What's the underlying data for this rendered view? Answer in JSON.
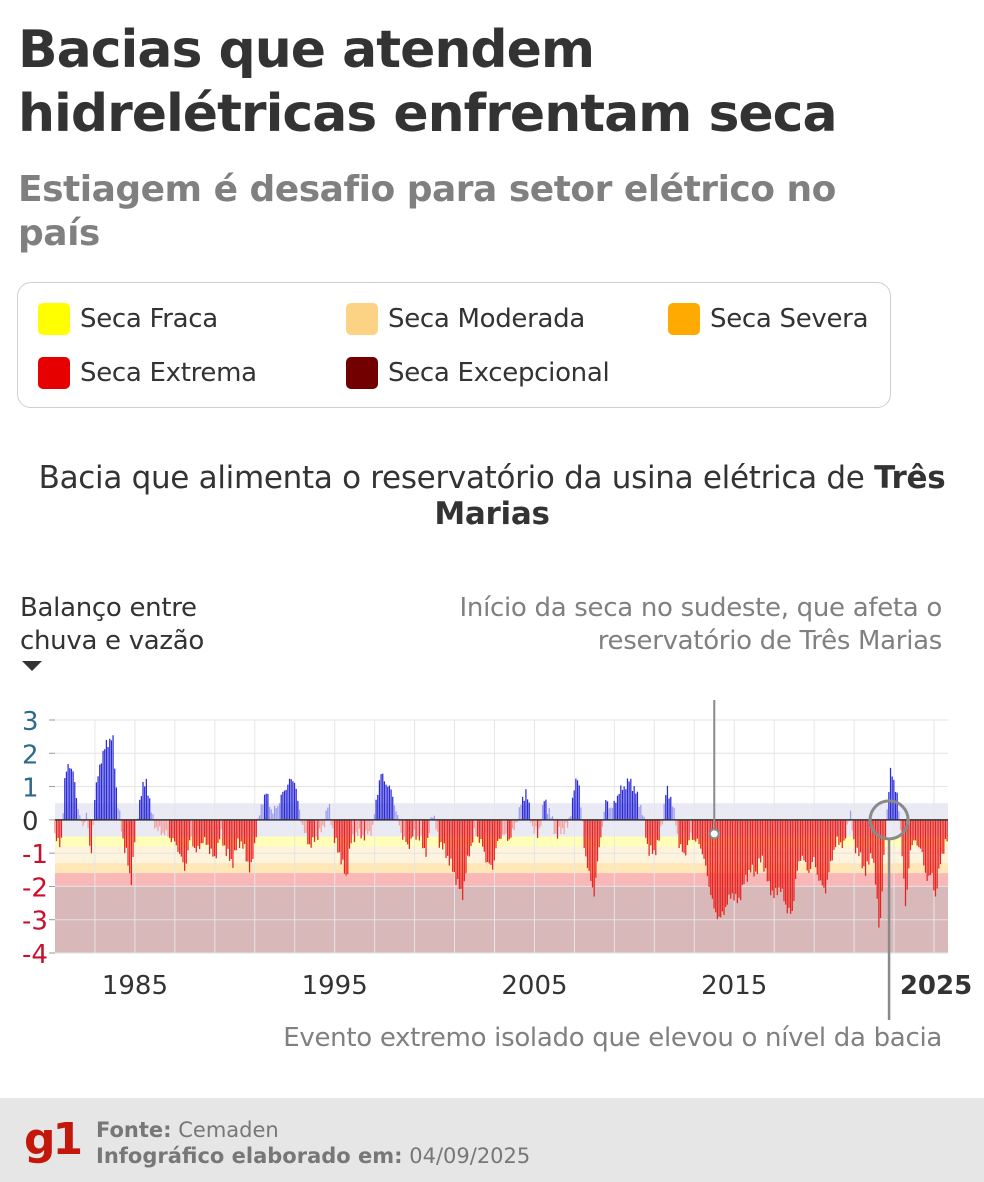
{
  "header": {
    "title": "Bacias que atendem hidrelétricas enfrentam seca",
    "subtitle": "Estiagem é desafio para setor elétrico no país"
  },
  "legend": [
    {
      "label": "Seca Fraca",
      "color": "#ffff00"
    },
    {
      "label": "Seca Moderada",
      "color": "#fcd385"
    },
    {
      "label": "Seca Severa",
      "color": "#ffaa00"
    },
    {
      "label": "Seca Extrema",
      "color": "#e60000"
    },
    {
      "label": "Seca Excepcional",
      "color": "#730000"
    }
  ],
  "chart_header": {
    "title_prefix": "Bacia que alimenta o reservatório da usina elétrica de ",
    "title_bold": "Três Marias"
  },
  "chart_data": {
    "type": "bar",
    "ylabel": "Balanço entre chuva e vazão",
    "ylim": [
      -4,
      3
    ],
    "yticks": [
      "3",
      "2",
      "1",
      "0",
      "-1",
      "-2",
      "-3",
      "-4"
    ],
    "ytick_values": [
      3,
      2,
      1,
      0,
      -1,
      -2,
      -3,
      -4
    ],
    "xlim": [
      1981,
      2025.7
    ],
    "xticks": [
      "1985",
      "1995",
      "2005",
      "2015",
      "2025"
    ],
    "xtick_values": [
      1985,
      1995,
      2005,
      2015,
      2025
    ],
    "grid": true,
    "bands": [
      {
        "name": "Seca Fraca",
        "from": -0.5,
        "to": -0.8,
        "color": "#ffff00"
      },
      {
        "name": "Seca Moderada",
        "from": -0.8,
        "to": -1.3,
        "color": "#fcd385"
      },
      {
        "name": "Seca Severa",
        "from": -1.3,
        "to": -1.6,
        "color": "#ffaa00"
      },
      {
        "name": "Seca Extrema",
        "from": -1.6,
        "to": -2.0,
        "color": "#e60000"
      },
      {
        "name": "Seca Excepcional",
        "from": -2.0,
        "to": -4.0,
        "color": "#730000"
      }
    ],
    "neutral_band": [
      -0.5,
      0.5
    ],
    "colors": {
      "positive": "#2b2bd6",
      "neutral": "#9a9af0",
      "neutral_negative": "#f2a0a0",
      "negative": "#e8231f"
    },
    "series": [
      {
        "name": "",
        "keypoints": [
          [
            1981.0,
            -0.4
          ],
          [
            1981.3,
            -0.9
          ],
          [
            1981.5,
            1.2
          ],
          [
            1981.7,
            1.7
          ],
          [
            1981.9,
            1.5
          ],
          [
            1982.1,
            0.6
          ],
          [
            1982.4,
            -0.3
          ],
          [
            1982.6,
            0.3
          ],
          [
            1982.8,
            -1.3
          ],
          [
            1983.0,
            0.7
          ],
          [
            1983.3,
            1.8
          ],
          [
            1983.6,
            2.3
          ],
          [
            1983.9,
            2.5
          ],
          [
            1984.1,
            0.8
          ],
          [
            1984.4,
            -0.6
          ],
          [
            1984.6,
            -1.0
          ],
          [
            1984.8,
            -2.0
          ],
          [
            1985.0,
            -0.6
          ],
          [
            1985.3,
            0.8
          ],
          [
            1985.6,
            1.2
          ],
          [
            1985.8,
            0.3
          ],
          [
            1986.1,
            -0.3
          ],
          [
            1986.5,
            -0.4
          ],
          [
            1986.9,
            -0.6
          ],
          [
            1987.2,
            -0.9
          ],
          [
            1987.5,
            -1.5
          ],
          [
            1987.8,
            -0.5
          ],
          [
            1988.1,
            -1.0
          ],
          [
            1988.4,
            -0.6
          ],
          [
            1988.7,
            -0.8
          ],
          [
            1989.0,
            -1.2
          ],
          [
            1989.3,
            -0.4
          ],
          [
            1989.6,
            -1.0
          ],
          [
            1989.9,
            -1.3
          ],
          [
            1990.2,
            -0.6
          ],
          [
            1990.5,
            -0.9
          ],
          [
            1990.8,
            -1.6
          ],
          [
            1991.1,
            -0.3
          ],
          [
            1991.4,
            0.6
          ],
          [
            1991.6,
            0.8
          ],
          [
            1991.9,
            0.2
          ],
          [
            1992.2,
            0.5
          ],
          [
            1992.5,
            0.9
          ],
          [
            1992.8,
            1.2
          ],
          [
            1993.0,
            1.2
          ],
          [
            1993.2,
            0.4
          ],
          [
            1993.5,
            -0.4
          ],
          [
            1993.8,
            -0.8
          ],
          [
            1994.1,
            -0.5
          ],
          [
            1994.4,
            -0.3
          ],
          [
            1994.7,
            0.5
          ],
          [
            1995.0,
            -0.6
          ],
          [
            1995.3,
            -1.1
          ],
          [
            1995.6,
            -1.8
          ],
          [
            1995.8,
            -0.7
          ],
          [
            1996.1,
            -0.4
          ],
          [
            1996.5,
            -0.5
          ],
          [
            1996.9,
            -0.3
          ],
          [
            1997.1,
            0.6
          ],
          [
            1997.3,
            1.4
          ],
          [
            1997.6,
            1.1
          ],
          [
            1997.9,
            0.8
          ],
          [
            1998.1,
            0.2
          ],
          [
            1998.4,
            -0.5
          ],
          [
            1998.7,
            -0.8
          ],
          [
            1999.0,
            -0.4
          ],
          [
            1999.3,
            -0.6
          ],
          [
            1999.6,
            -1.0
          ],
          [
            1999.9,
            0.3
          ],
          [
            2000.2,
            -0.6
          ],
          [
            2000.5,
            -0.9
          ],
          [
            2000.8,
            -1.3
          ],
          [
            2001.1,
            -1.8
          ],
          [
            2001.4,
            -2.3
          ],
          [
            2001.7,
            -1.1
          ],
          [
            2002.0,
            -0.4
          ],
          [
            2002.3,
            -0.6
          ],
          [
            2002.6,
            -1.2
          ],
          [
            2002.9,
            -1.5
          ],
          [
            2003.1,
            -0.8
          ],
          [
            2003.4,
            -0.4
          ],
          [
            2003.7,
            -0.6
          ],
          [
            2004.0,
            -0.3
          ],
          [
            2004.3,
            0.4
          ],
          [
            2004.6,
            0.9
          ],
          [
            2004.9,
            -0.2
          ],
          [
            2005.2,
            -0.5
          ],
          [
            2005.5,
            0.6
          ],
          [
            2005.8,
            0.2
          ],
          [
            2006.1,
            -0.5
          ],
          [
            2006.4,
            -0.3
          ],
          [
            2006.7,
            -0.2
          ],
          [
            2007.0,
            0.9
          ],
          [
            2007.2,
            1.4
          ],
          [
            2007.5,
            -0.8
          ],
          [
            2007.8,
            -1.8
          ],
          [
            2008.0,
            -2.2
          ],
          [
            2008.3,
            -0.6
          ],
          [
            2008.6,
            0.6
          ],
          [
            2008.9,
            0.3
          ],
          [
            2009.2,
            0.8
          ],
          [
            2009.5,
            1.0
          ],
          [
            2009.8,
            1.2
          ],
          [
            2010.1,
            0.8
          ],
          [
            2010.4,
            0.3
          ],
          [
            2010.7,
            -0.9
          ],
          [
            2011.0,
            -1.0
          ],
          [
            2011.3,
            -0.5
          ],
          [
            2011.6,
            0.9
          ],
          [
            2011.9,
            0.6
          ],
          [
            2012.2,
            -0.6
          ],
          [
            2012.5,
            -1.1
          ],
          [
            2012.8,
            -0.5
          ],
          [
            2013.1,
            -0.6
          ],
          [
            2013.4,
            -0.9
          ],
          [
            2013.7,
            -1.8
          ],
          [
            2014.0,
            -2.7
          ],
          [
            2014.3,
            -3.0
          ],
          [
            2014.6,
            -2.6
          ],
          [
            2014.9,
            -2.2
          ],
          [
            2015.2,
            -2.5
          ],
          [
            2015.5,
            -1.9
          ],
          [
            2015.8,
            -1.5
          ],
          [
            2016.1,
            -1.6
          ],
          [
            2016.4,
            -1.1
          ],
          [
            2016.7,
            -1.9
          ],
          [
            2017.0,
            -2.3
          ],
          [
            2017.3,
            -2.0
          ],
          [
            2017.6,
            -2.6
          ],
          [
            2017.9,
            -2.9
          ],
          [
            2018.1,
            -1.7
          ],
          [
            2018.4,
            -1.0
          ],
          [
            2018.7,
            -1.6
          ],
          [
            2019.0,
            -1.2
          ],
          [
            2019.3,
            -1.9
          ],
          [
            2019.6,
            -2.1
          ],
          [
            2019.9,
            -1.1
          ],
          [
            2020.2,
            -0.6
          ],
          [
            2020.5,
            -0.8
          ],
          [
            2020.8,
            0.3
          ],
          [
            2021.0,
            -0.7
          ],
          [
            2021.3,
            -1.1
          ],
          [
            2021.6,
            -1.6
          ],
          [
            2021.9,
            -0.9
          ],
          [
            2022.1,
            -2.0
          ],
          [
            2022.3,
            -3.4
          ],
          [
            2022.5,
            -1.2
          ],
          [
            2022.7,
            0.6
          ],
          [
            2022.85,
            1.5
          ],
          [
            2023.0,
            1.2
          ],
          [
            2023.2,
            0.6
          ],
          [
            2023.4,
            -0.8
          ],
          [
            2023.6,
            -2.8
          ],
          [
            2023.8,
            -0.9
          ],
          [
            2024.1,
            -0.6
          ],
          [
            2024.4,
            -1.0
          ],
          [
            2024.7,
            -1.9
          ],
          [
            2024.9,
            -1.5
          ],
          [
            2025.1,
            -2.5
          ],
          [
            2025.3,
            -1.2
          ],
          [
            2025.5,
            -1.0
          ],
          [
            2025.65,
            -0.5
          ]
        ]
      }
    ]
  },
  "annotations": {
    "top": "Início da seca no sudeste, que afeta o reservatório de Três Marias",
    "bottom": "Evento extremo isolado que elevou o nível da bacia",
    "top_at_year": 2014.0,
    "bottom_at_year": 2022.75
  },
  "footer": {
    "logo": "g1",
    "source_key": "Fonte:",
    "source_value": "Cemaden",
    "made_key": "Infográfico elaborado em:",
    "made_value": "04/09/2025"
  }
}
